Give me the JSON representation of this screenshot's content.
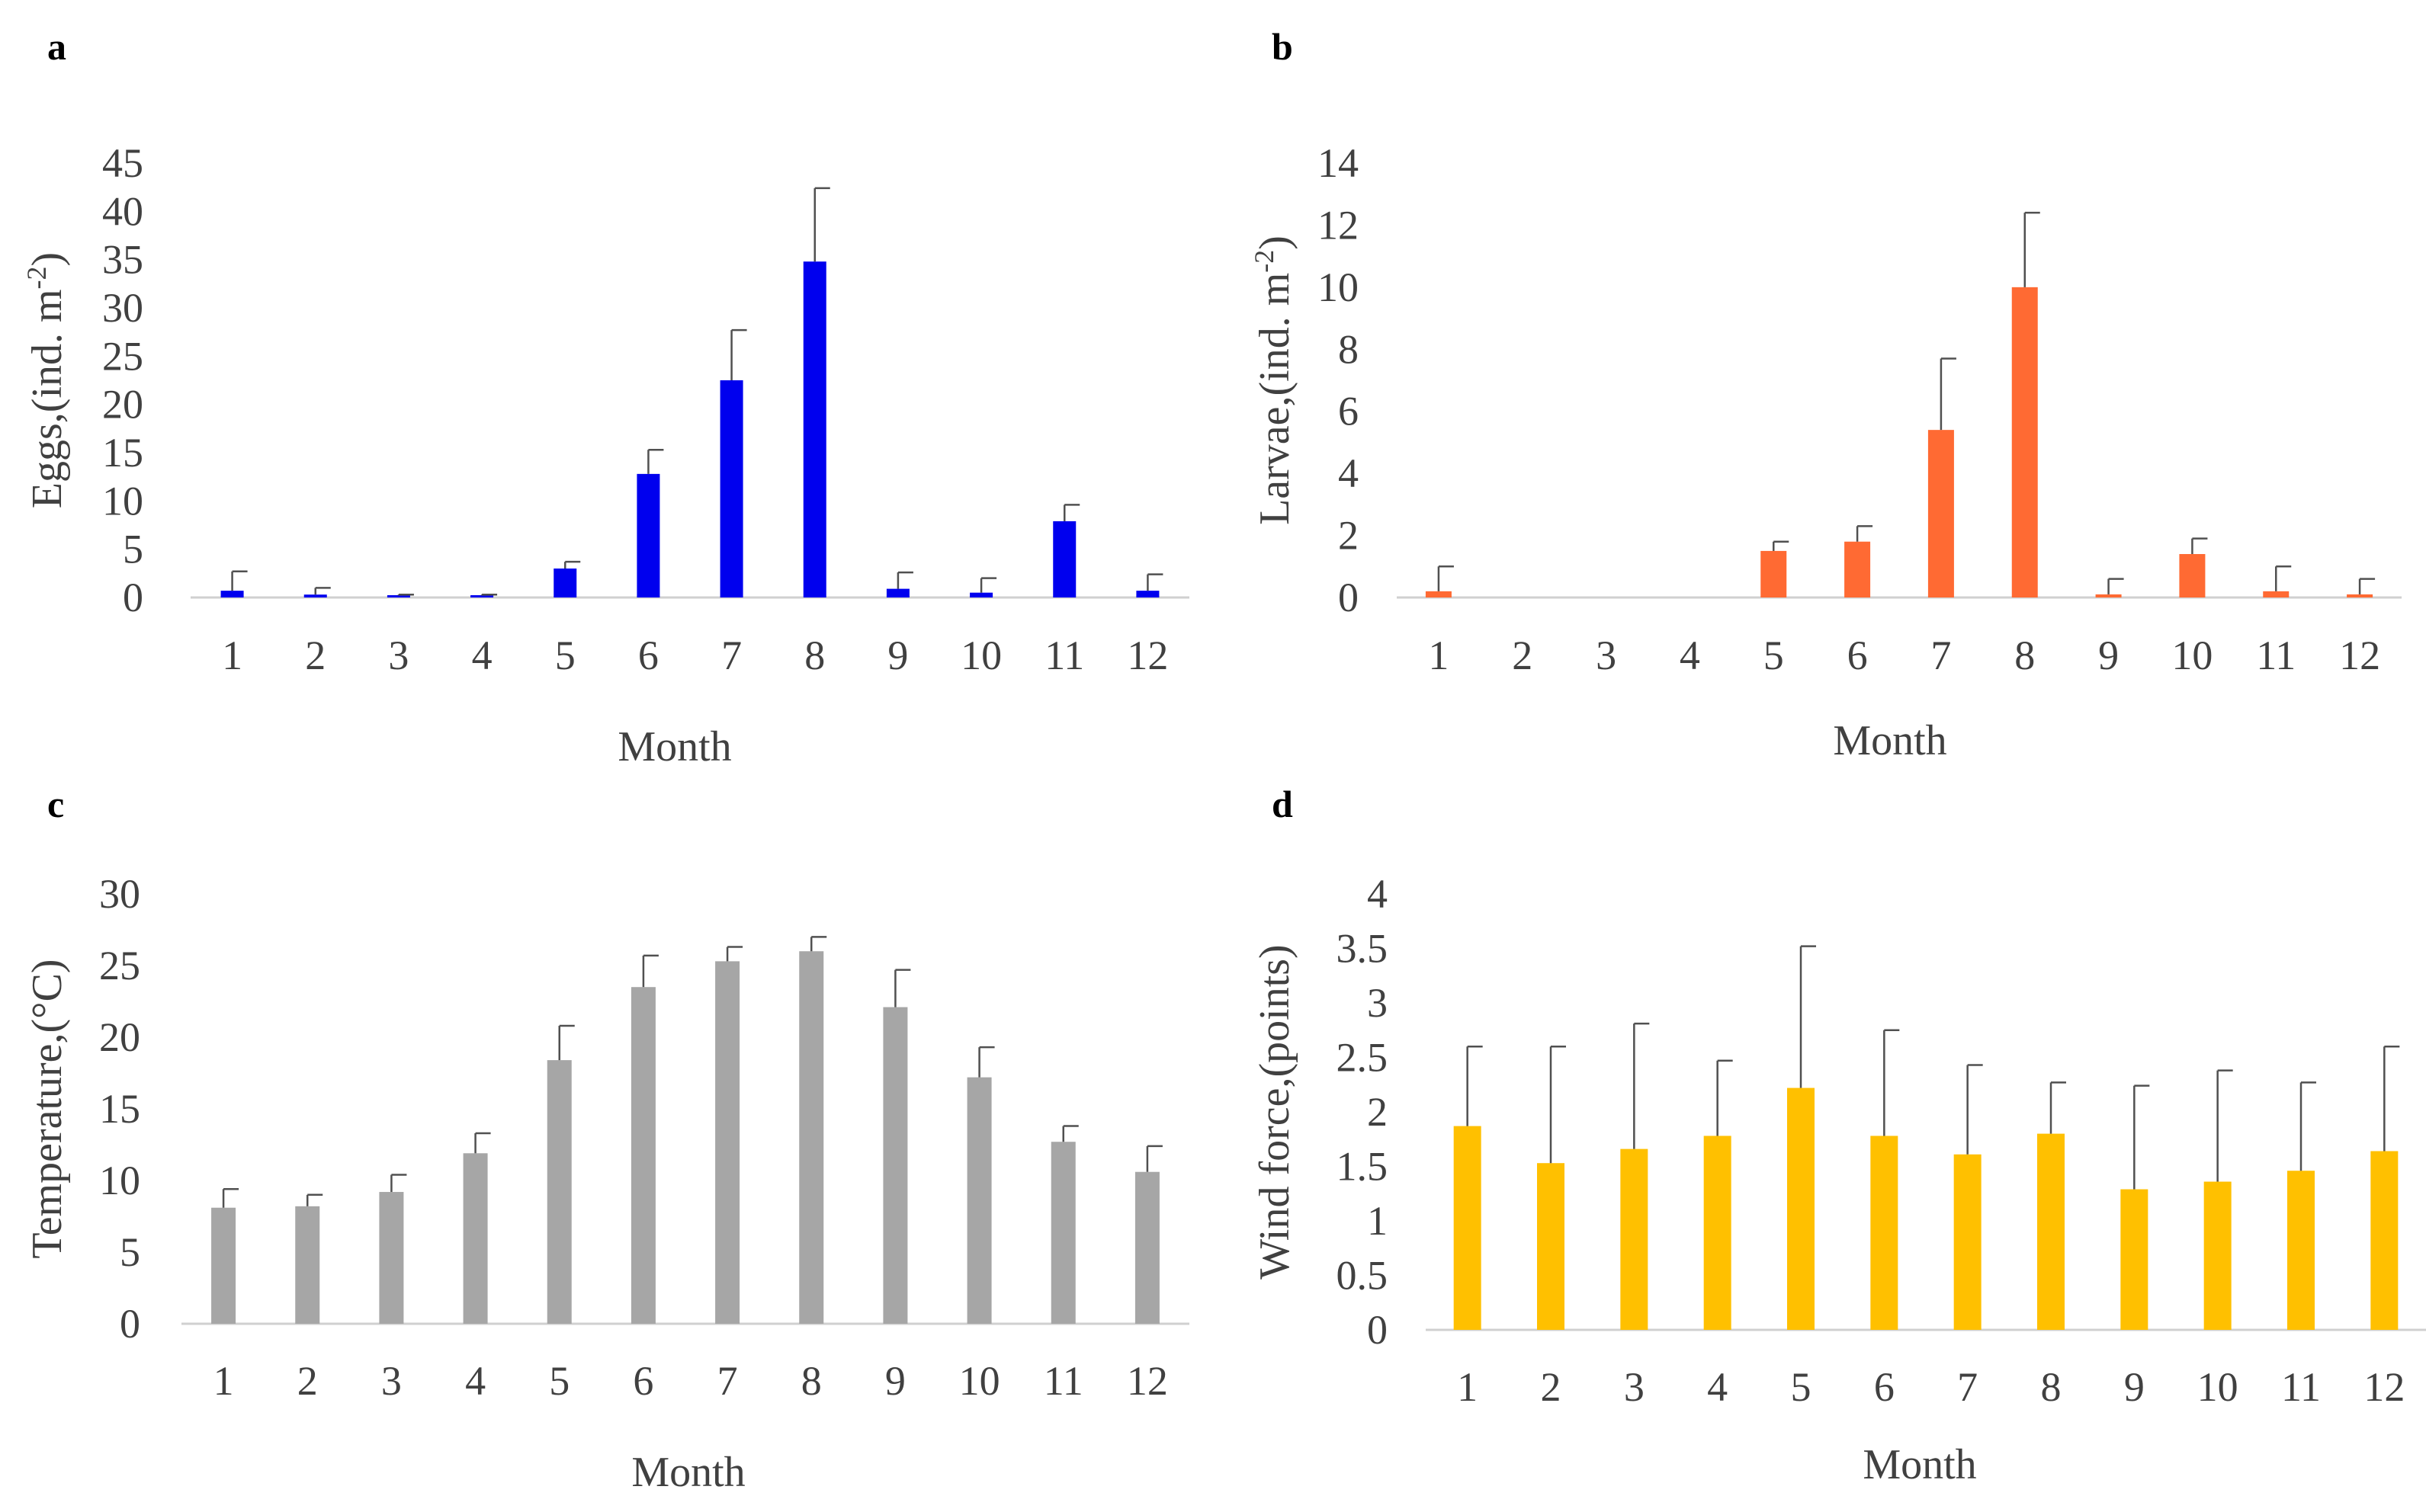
{
  "chart_data": [
    {
      "panel": "a",
      "type": "bar",
      "categories": [
        "1",
        "2",
        "3",
        "4",
        "5",
        "6",
        "7",
        "8",
        "9",
        "10",
        "11",
        "12"
      ],
      "series": [
        {
          "values": [
            0.7,
            0.3,
            0.2,
            0.2,
            3.0,
            12.8,
            22.5,
            34.8,
            0.9,
            0.5,
            7.9,
            0.7
          ],
          "errors": [
            2.0,
            0.7,
            0.1,
            0.1,
            0.7,
            2.5,
            5.2,
            7.6,
            1.7,
            1.5,
            1.7,
            1.7
          ]
        }
      ],
      "xlabel": "Month",
      "ylabel": "Eggs,(ind. m-2)",
      "ylabel_main": "Eggs,(ind. m",
      "ylabel_sup": "-2",
      "ylabel_end": ")",
      "ylim": [
        0,
        45
      ],
      "yticks": [
        "0",
        "5",
        "10",
        "15",
        "20",
        "25",
        "30",
        "35",
        "40",
        "45"
      ],
      "color": "#0000ee",
      "grid": false
    },
    {
      "panel": "b",
      "type": "bar",
      "categories": [
        "1",
        "2",
        "3",
        "4",
        "5",
        "6",
        "7",
        "8",
        "9",
        "10",
        "11",
        "12"
      ],
      "series": [
        {
          "values": [
            0.2,
            0,
            0,
            0,
            1.5,
            1.8,
            5.4,
            10.0,
            0.1,
            1.4,
            0.2,
            0.1
          ],
          "errors": [
            0.8,
            0,
            0,
            0,
            0.3,
            0.5,
            2.3,
            2.4,
            0.5,
            0.5,
            0.8,
            0.5
          ]
        }
      ],
      "xlabel": "Month",
      "ylabel": "Larvae,(ind. m-2)",
      "ylabel_main": "Larvae,(ind. m",
      "ylabel_sup": "-2",
      "ylabel_end": ")",
      "ylim": [
        0,
        14
      ],
      "yticks": [
        "0",
        "2",
        "4",
        "6",
        "8",
        "10",
        "12",
        "14"
      ],
      "color": "#ff6a33",
      "grid": false
    },
    {
      "panel": "c",
      "type": "bar",
      "categories": [
        "1",
        "2",
        "3",
        "4",
        "5",
        "6",
        "7",
        "8",
        "9",
        "10",
        "11",
        "12"
      ],
      "series": [
        {
          "values": [
            8.1,
            8.2,
            9.2,
            11.9,
            18.4,
            23.5,
            25.3,
            26.0,
            22.1,
            17.2,
            12.7,
            10.6
          ],
          "errors": [
            1.3,
            0.8,
            1.2,
            1.4,
            2.4,
            2.2,
            1.0,
            1.0,
            2.6,
            2.1,
            1.1,
            1.8
          ]
        }
      ],
      "xlabel": "Month",
      "ylabel": "Temperature,(°C)",
      "ylabel_main": "Temperature,(°C)",
      "ylabel_sup": "",
      "ylabel_end": "",
      "ylim": [
        0,
        30
      ],
      "yticks": [
        "0",
        "5",
        "10",
        "15",
        "20",
        "25",
        "30"
      ],
      "color": "#a6a6a6",
      "grid": false
    },
    {
      "panel": "d",
      "type": "bar",
      "categories": [
        "1",
        "2",
        "3",
        "4",
        "5",
        "6",
        "7",
        "8",
        "9",
        "10",
        "11",
        "12"
      ],
      "series": [
        {
          "values": [
            1.87,
            1.53,
            1.66,
            1.78,
            2.22,
            1.78,
            1.61,
            1.8,
            1.29,
            1.36,
            1.46,
            1.64
          ],
          "errors": [
            0.73,
            1.07,
            1.15,
            0.69,
            1.3,
            0.97,
            0.82,
            0.47,
            0.95,
            1.02,
            0.81,
            0.96
          ]
        }
      ],
      "xlabel": "Month",
      "ylabel": "Wind force,(points)",
      "ylabel_main": "Wind force,(points)",
      "ylabel_sup": "",
      "ylabel_end": "",
      "ylim": [
        0,
        4
      ],
      "yticks": [
        "0",
        "0.5",
        "1",
        "1.5",
        "2",
        "2.5",
        "3",
        "3.5",
        "4"
      ],
      "color": "#ffc000",
      "grid": false
    }
  ]
}
